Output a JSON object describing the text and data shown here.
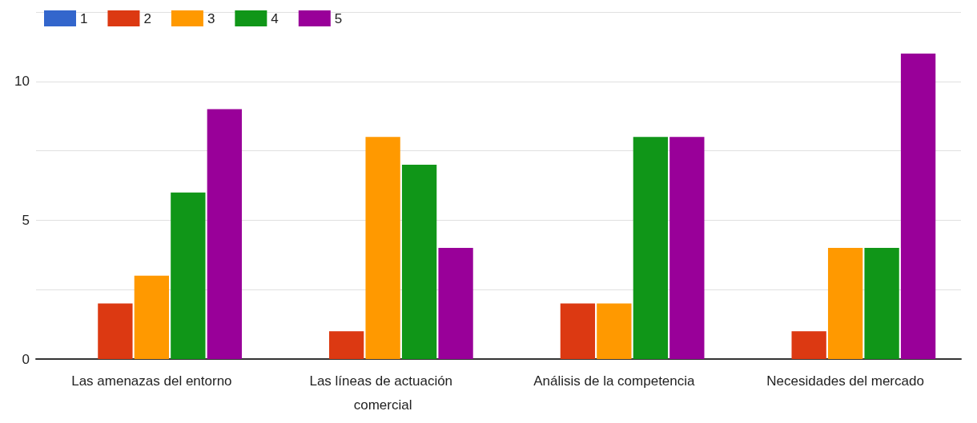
{
  "chart_data": {
    "type": "bar",
    "categories": [
      "Las amenazas del entorno",
      "Las líneas de actuación comercial",
      "Análisis de la competencia",
      "Necesidades del mercado"
    ],
    "series": [
      {
        "name": "1",
        "color": "#3366cc",
        "values": [
          0,
          0,
          0,
          0
        ]
      },
      {
        "name": "2",
        "color": "#dc3912",
        "values": [
          2,
          1,
          2,
          1
        ]
      },
      {
        "name": "3",
        "color": "#ff9900",
        "values": [
          3,
          8,
          2,
          4
        ]
      },
      {
        "name": "4",
        "color": "#109618",
        "values": [
          6,
          7,
          8,
          4
        ]
      },
      {
        "name": "5",
        "color": "#990099",
        "values": [
          9,
          4,
          8,
          11
        ]
      }
    ],
    "ylim": [
      0,
      12.5
    ],
    "yticks": [
      0,
      {
        "value": 2.5,
        "label": null
      },
      5,
      {
        "value": 7.5,
        "label": null
      },
      10,
      {
        "value": 12.5,
        "label": null
      }
    ],
    "grid": "y",
    "legend": "top left"
  }
}
